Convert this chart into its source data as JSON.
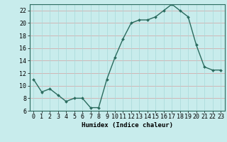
{
  "x": [
    0,
    1,
    2,
    3,
    4,
    5,
    6,
    7,
    8,
    9,
    10,
    11,
    12,
    13,
    14,
    15,
    16,
    17,
    18,
    19,
    20,
    21,
    22,
    23
  ],
  "y": [
    11,
    9,
    9.5,
    8.5,
    7.5,
    8,
    8,
    6.5,
    6.5,
    11,
    14.5,
    17.5,
    20,
    20.5,
    20.5,
    21,
    22,
    23,
    22,
    21,
    16.5,
    13,
    12.5,
    12.5
  ],
  "line_color": "#2a6b5e",
  "marker": "D",
  "marker_size": 2.0,
  "bg_color": "#c8ecec",
  "grid_h_color": "#d4a0a0",
  "grid_v_color": "#a8d8d8",
  "xlabel": "Humidex (Indice chaleur)",
  "ylim": [
    6,
    23
  ],
  "xlim": [
    -0.5,
    23.5
  ],
  "yticks": [
    6,
    8,
    10,
    12,
    14,
    16,
    18,
    20,
    22
  ],
  "xticks": [
    0,
    1,
    2,
    3,
    4,
    5,
    6,
    7,
    8,
    9,
    10,
    11,
    12,
    13,
    14,
    15,
    16,
    17,
    18,
    19,
    20,
    21,
    22,
    23
  ],
  "linewidth": 1.0,
  "xlabel_fontsize": 6.5,
  "tick_fontsize": 6.0
}
